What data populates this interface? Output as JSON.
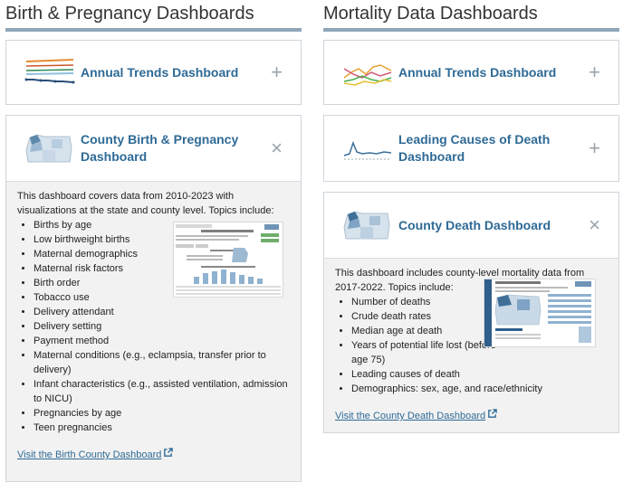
{
  "left": {
    "title": "Birth & Pregnancy Dashboards",
    "cards": [
      {
        "title": "Annual Trends Dashboard",
        "toggle": "+",
        "thumb_icon": "trend-lines-icon"
      },
      {
        "title": "County Birth & Pregnancy Dashboard",
        "toggle": "×",
        "thumb_icon": "oregon-map-icon",
        "intro": "This dashboard covers data from 2010-2023 with visualizations at the state and county level. Topics include:",
        "items": [
          "Births by age",
          "Low birthweight births",
          "Maternal demographics",
          "Maternal risk factors",
          "Birth order",
          "Tobacco use",
          "Delivery attendant",
          "Delivery setting",
          "Payment method",
          "Maternal conditions (e.g., eclampsia, transfer prior to delivery)",
          "Infant characteristics (e.g., assisted ventilation, admission to NICU)",
          "Pregnancies by age",
          "Teen pregnancies"
        ],
        "link": "Visit the Birth County Dashboard"
      }
    ]
  },
  "right": {
    "title": "Mortality Data Dashboards",
    "cards": [
      {
        "title": "Annual Trends Dashboard",
        "toggle": "+",
        "thumb_icon": "trend-lines-icon"
      },
      {
        "title": "Leading Causes of Death Dashboard",
        "toggle": "+",
        "thumb_icon": "line-chart-icon"
      },
      {
        "title": "County Death Dashboard",
        "toggle": "×",
        "thumb_icon": "oregon-map-icon",
        "intro": "This dashboard includes county-level mortality data from 2017-2022. Topics include:",
        "items": [
          "Number of deaths",
          "Crude death rates",
          "Median age at death",
          "Years of potential life lost (before age 75)",
          "Leading causes of death",
          "Demographics: sex, age, and race/ethnicity"
        ],
        "link": "Visit the County Death Dashboard"
      }
    ]
  },
  "colors": {
    "title": "#2e6a96",
    "rule": "#8fa6b9",
    "body_bg": "#f2f2f2"
  }
}
